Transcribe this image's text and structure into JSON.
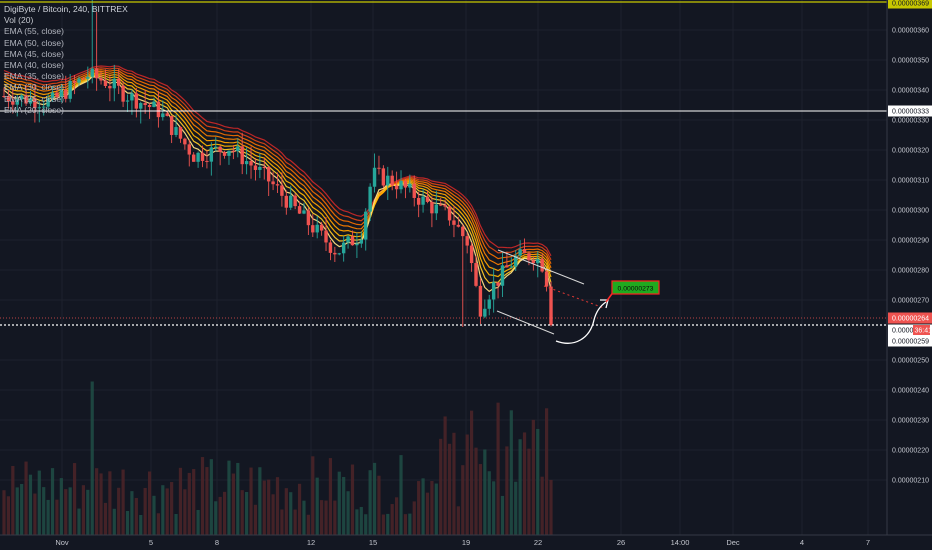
{
  "legend": {
    "symbol": "DigiByte / Bitcoin, 240, BITTREX",
    "indicators": [
      "Vol (20)",
      "EMA (55, close)",
      "EMA (50, close)",
      "EMA (45, close)",
      "EMA (40, close)",
      "EMA (35, close)",
      "EMA (30, close)",
      "EMA (25, close)",
      "EMA (20, close)"
    ]
  },
  "chart_data": {
    "type": "candlestick",
    "symbol": "DigiByte / Bitcoin",
    "interval": "240",
    "exchange": "BITTREX",
    "ylim": [
      2.05e-06,
      3.7e-06
    ],
    "y_ticks": [
      "0.00000360",
      "0.00000350",
      "0.00000340",
      "0.00000330",
      "0.00000320",
      "0.00000310",
      "0.00000300",
      "0.00000290",
      "0.00000280",
      "0.00000270",
      "0.00000250",
      "0.00000240",
      "0.00000230",
      "0.00000220",
      "0.00000210"
    ],
    "x_ticks": [
      "Nov",
      "5",
      "8",
      "12",
      "15",
      "19",
      "22",
      "26",
      "14:00",
      "Dec",
      "4",
      "7"
    ],
    "price_labels": {
      "top": "0.00000369",
      "horizontal_level": "0.00000333",
      "current": "0.00000264",
      "countdown": "36:41",
      "countdown_prefix": "0.0000",
      "dotted_level": "0.00000259"
    },
    "target_label": "0.00000273",
    "horizontal_levels": [
      3.33e-06,
      2.64e-06,
      2.59e-06,
      3.69e-06
    ],
    "close_path": [
      [
        0.0,
        3.38e-06
      ],
      [
        4.0,
        3.36e-06
      ],
      [
        7.0,
        3.45e-06
      ],
      [
        8.5,
        3.43e-06
      ],
      [
        10.0,
        3.39e-06
      ],
      [
        13.0,
        3.33e-06
      ],
      [
        16.0,
        3.18e-06
      ],
      [
        19.0,
        3.21e-06
      ],
      [
        22.0,
        3.11e-06
      ],
      [
        25.0,
        2.98e-06
      ],
      [
        28.0,
        2.86e-06
      ],
      [
        30.0,
        2.92e-06
      ],
      [
        31.0,
        3.12e-06
      ],
      [
        33.0,
        3.09e-06
      ],
      [
        36.0,
        3.01e-06
      ],
      [
        37.5,
        2.98e-06
      ],
      [
        39.0,
        2.89e-06
      ],
      [
        40.0,
        2.67e-06
      ],
      [
        41.0,
        2.74e-06
      ],
      [
        43.0,
        2.84e-06
      ],
      [
        44.5,
        2.85e-06
      ],
      [
        45.5,
        2.81e-06
      ],
      [
        46.0,
        2.64e-06
      ]
    ],
    "ema_periods": [
      55,
      50,
      45,
      40,
      35,
      30,
      25,
      20
    ],
    "ema_colors": [
      "#c62828",
      "#d84315",
      "#ef6c00",
      "#f57c00",
      "#ffa000",
      "#ffb300",
      "#ffca28",
      "#ffe082"
    ],
    "up_color": "#26a69a",
    "down_color": "#ef5350",
    "level_color": "#ffffff",
    "current_color": "#ef5350",
    "top_level_color": "#c8c800",
    "target_color": "#1faa1f"
  }
}
